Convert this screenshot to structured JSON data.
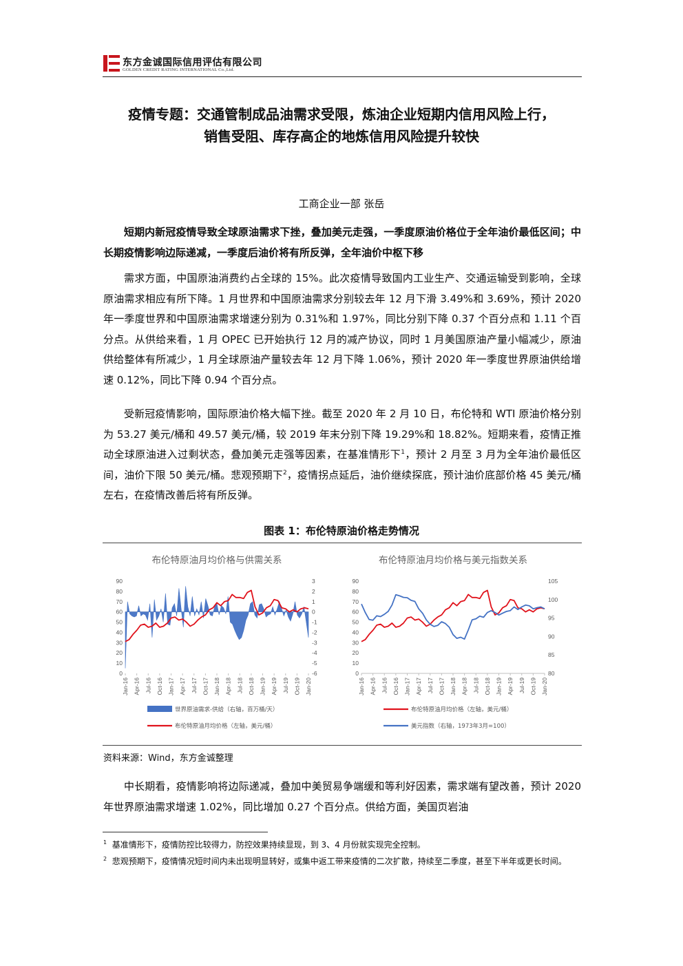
{
  "header": {
    "company_cn": "东方金诚国际信用评估有限公司",
    "company_en": "GOLDEN CREDIT RATING INTERNATIONAL Co.,Ltd.",
    "brand_color": "#c8161d"
  },
  "title_line1": "疫情专题：交通管制成品油需求受限，炼油企业短期内信用风险上行，",
  "title_line2": "销售受阻、库存高企的地炼信用风险提升较快",
  "author": "工商企业一部  张岳",
  "lead": "短期内新冠疫情导致全球原油需求下挫，叠加美元走强，一季度原油价格位于全年油价最低区间；中长期疫情影响边际递减，一季度后油价将有所反弹，全年油价中枢下移",
  "para1": "需求方面，中国原油消费约占全球的 15%。此次疫情导致国内工业生产、交通运输受到影响，全球原油需求相应有所下降。1 月世界和中国原油需求分别较去年 12 月下滑 3.49%和 3.69%，预计 2020 年一季度世界和中国原油需求增速分别为 0.31%和 1.97%，同比分别下降 0.37 个百分点和 1.11 个百分点。从供给来看，1 月 OPEC 已开始执行 12 月的减产协议，同时 1 月美国原油产量小幅减少，原油供给整体有所减少，1 月全球原油产量较去年 12 月下降 1.06%，预计 2020 年一季度世界原油供给增速 0.12%，同比下降 0.94 个百分点。",
  "para2_a": "受新冠疫情影响，国际原油价格大幅下挫。截至 2020 年 2 月 10 日，布伦特和 WTI 原油价格分别为 53.27 美元/桶和 49.57 美元/桶，较 2019 年末分别下降 19.29%和 18.82%。短期来看，疫情正推动全球原油进入过剩状态，叠加美元走强等因素，在基准情形下",
  "para2_b": "，预计 2 月至 3 月为全年油价最低区间，油价下限 50 美元/桶。悲观预期下",
  "para2_c": "，疫情拐点延后，油价继续探底，预计油价底部价格 45 美元/桶左右，在疫情改善后将有所反弹。",
  "fn_mark_1": "1",
  "fn_mark_2": "2",
  "figure_title": "图表 1：布伦特原油价格走势情况",
  "source": "资料来源：Wind，东方金诚整理",
  "para3": "中长期看，疫情影响将边际递减，叠加中美贸易争端缓和等利好因素，需求端有望改善，预计 2020 年世界原油需求增速 1.02%，同比增加 0.27 个百分点。供给方面，美国页岩油",
  "footnote1": "基准情形下，疫情防控比较得力，防控效果持续显现，到 3、4 月份就实现完全控制。",
  "footnote2": "悲观预期下，疫情情况短时间内未出现明显转好，或集中返工带来疫情的二次扩散，持续至二季度，甚至下半年或更长时间。",
  "colors": {
    "red": "#e0121b",
    "blue": "#4472c4",
    "axis": "#bfbfbf",
    "text": "#595959"
  },
  "chart_data": [
    {
      "type": "line",
      "title": "布伦特原油月均价格与供需关系",
      "x_ticks": [
        "Jan-16",
        "Apr-16",
        "Jul-16",
        "Oct-16",
        "Jan-17",
        "Apr-17",
        "Jul-17",
        "Oct-17",
        "Jan-18",
        "Apr-18",
        "Jul-18",
        "Oct-18",
        "Jan-19",
        "Apr-19",
        "Jul-19",
        "Oct-19",
        "Jan-20"
      ],
      "y_left": {
        "min": 0,
        "max": 90,
        "step": 10
      },
      "y_right": {
        "min": -6,
        "max": 3,
        "step": 1
      },
      "series": [
        {
          "name": "世界原油需求-供给（右轴，百万桶/天）",
          "kind": "area",
          "axis": "right",
          "color": "#4472c4",
          "values": [
            -5.5,
            1.0,
            -0.2,
            -0.4,
            -0.5,
            -0.4,
            0.6,
            -0.4,
            -0.2,
            -0.3,
            -0.8,
            0.8,
            -2.5,
            1.2,
            -0.8,
            -0.4,
            0.3,
            -1.0,
            1.8,
            -1.2,
            -1.3,
            0.4,
            0.8,
            -0.4,
            2.3,
            0.3,
            -1.5,
            2.5,
            0.5,
            -0.4,
            1.5,
            -0.4,
            0.3,
            -0.3,
            1.0,
            -0.6,
            1.3,
            0.6,
            -0.3,
            -0.4,
            0.5,
            0.8,
            -0.3,
            0.6,
            0.4,
            -0.2,
            1.5,
            -1.0,
            -1.2,
            -1.8,
            -2.3,
            -2.7,
            -2.5,
            -1.8,
            -0.8,
            -0.3,
            0.8,
            1.0,
            -0.3,
            -0.6,
            0.7,
            0.8,
            0.3,
            -0.5,
            -0.3,
            -0.2,
            0.5,
            -0.3,
            0.3,
            1.0,
            0.3,
            -0.4,
            0.2,
            -0.5,
            -0.9,
            -0.2,
            1.0,
            -0.3,
            -0.6,
            -0.2,
            0.5,
            -1.0,
            -2.5
          ]
        },
        {
          "name": "布伦特原油月均价格（左轴，美元/桶）",
          "kind": "line",
          "axis": "left",
          "color": "#e0121b",
          "values": [
            31,
            33,
            38,
            42,
            47,
            48,
            45,
            46,
            49,
            45,
            46,
            49,
            54,
            55,
            52,
            53,
            50,
            46,
            48,
            52,
            55,
            57,
            62,
            64,
            69,
            66,
            70,
            71,
            77,
            74,
            74,
            73,
            79,
            81,
            65,
            57,
            59,
            64,
            66,
            72,
            71,
            64,
            63,
            60,
            62,
            60,
            63,
            64,
            63
          ]
        }
      ]
    },
    {
      "type": "line",
      "title": "布伦特原油月均价格与美元指数关系",
      "x_ticks": [
        "Jan-16",
        "Apr-16",
        "Jul-16",
        "Oct-16",
        "Jan-17",
        "Apr-17",
        "Jul-17",
        "Oct-17",
        "Jan-18",
        "Apr-18",
        "Jul-18",
        "Oct-18",
        "Jan-19",
        "Apr-19",
        "Jul-19",
        "Oct-19",
        "Jan-20"
      ],
      "y_left": {
        "min": 0,
        "max": 90,
        "step": 10
      },
      "y_right": {
        "min": 80,
        "max": 105,
        "step": 5
      },
      "series": [
        {
          "name": "布伦特原油月均价格（左轴，美元/桶）",
          "kind": "line",
          "axis": "left",
          "color": "#e0121b",
          "values": [
            31,
            33,
            38,
            42,
            47,
            48,
            45,
            46,
            49,
            45,
            46,
            49,
            54,
            55,
            52,
            53,
            50,
            46,
            48,
            52,
            55,
            57,
            62,
            64,
            69,
            66,
            70,
            71,
            77,
            74,
            74,
            73,
            79,
            81,
            65,
            57,
            59,
            64,
            66,
            72,
            71,
            64,
            63,
            60,
            62,
            60,
            63,
            64,
            63
          ]
        },
        {
          "name": "美元指数（右轴，1973年3月=100）",
          "kind": "line",
          "axis": "right",
          "color": "#4472c4",
          "values": [
            98.8,
            96.5,
            94.6,
            94.4,
            95.6,
            95.4,
            96.0,
            96.8,
            98.5,
            101.3,
            101.0,
            100.6,
            100.5,
            99.8,
            99.5,
            97.5,
            96.3,
            94.5,
            93.3,
            92.7,
            93.0,
            94.0,
            93.5,
            92.5,
            90.5,
            89.5,
            89.8,
            89.3,
            91.8,
            94.5,
            94.8,
            95.5,
            95.2,
            96.5,
            97.0,
            96.5,
            95.8,
            96.3,
            96.8,
            97.0,
            98.0,
            97.3,
            98.0,
            98.5,
            98.3,
            97.5,
            97.8,
            98.0,
            97.5
          ]
        }
      ]
    }
  ]
}
